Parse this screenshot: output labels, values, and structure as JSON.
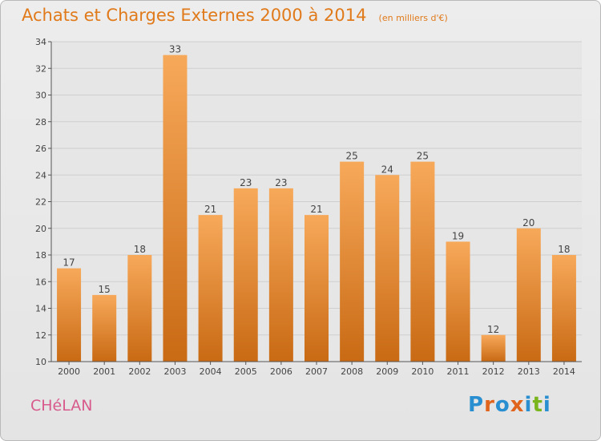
{
  "header": {
    "title": "Achats et Charges Externes 2000 à 2014",
    "subtitle": "(en milliers d'€)"
  },
  "footer": {
    "commune": "CHéLAN",
    "logo": "Proxiti"
  },
  "colors": {
    "bar_top": "#f7a95a",
    "bar_bottom": "#c96a14",
    "title": "#e07a1a",
    "commune": "#d85a8c",
    "logo_letters": [
      "#2a8fd0",
      "#e0641c",
      "#2a8fd0",
      "#e0641c",
      "#2a8fd0",
      "#7ab51d",
      "#2a8fd0"
    ]
  },
  "chart_data": {
    "type": "bar",
    "title": "Achats et Charges Externes 2000 à 2014",
    "subtitle": "(en milliers d'€)",
    "categories": [
      "2000",
      "2001",
      "2002",
      "2003",
      "2004",
      "2005",
      "2006",
      "2007",
      "2008",
      "2009",
      "2010",
      "2011",
      "2012",
      "2013",
      "2014"
    ],
    "values": [
      17,
      15,
      18,
      33,
      21,
      23,
      23,
      21,
      25,
      24,
      25,
      19,
      12,
      20,
      18
    ],
    "xlabel": "",
    "ylabel": "",
    "ylim": [
      10,
      34
    ],
    "yticks": [
      10,
      12,
      14,
      16,
      18,
      20,
      22,
      24,
      26,
      28,
      30,
      32,
      34
    ],
    "grid": true,
    "data_labels": true
  }
}
